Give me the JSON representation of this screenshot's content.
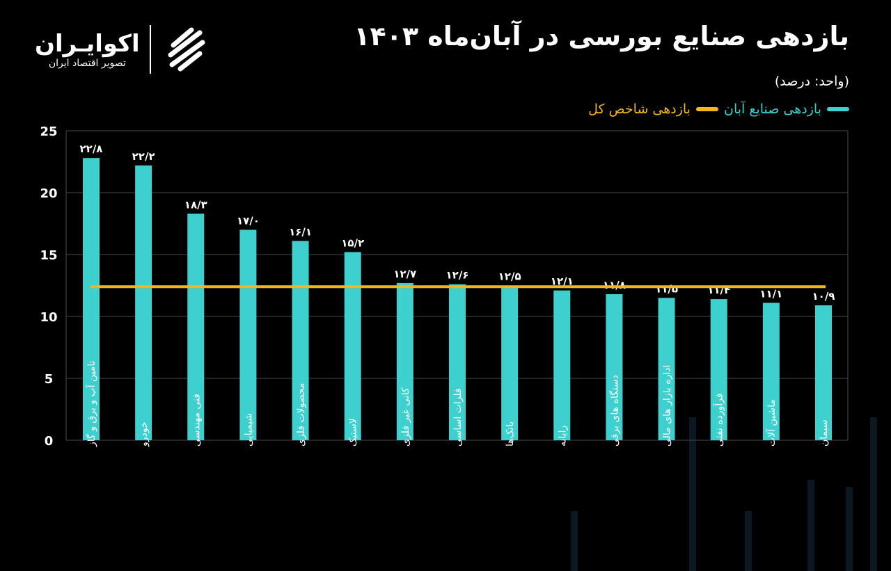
{
  "header": {
    "title": "بازدهی صنایع بورسی در آبان‌ماه ۱۴۰۳",
    "unit": "(واحد: درصد)",
    "logo_name": "اکوایـران",
    "logo_subtitle": "تصویر اقتصاد ایران"
  },
  "colors": {
    "bars": "#3ecfcf",
    "index_line": "#f2b51c",
    "grid": "#4a4a4a",
    "background": "#000000"
  },
  "chart_data": {
    "type": "bar",
    "title": "بازدهی صنایع بورسی در آبان‌ماه ۱۴۰۳",
    "ylabel": "(واحد: درصد)",
    "ylim": [
      0,
      25
    ],
    "yticks": [
      0,
      5,
      10,
      15,
      20,
      25
    ],
    "ytick_labels": [
      "0",
      "5",
      "10",
      "15",
      "20",
      "25"
    ],
    "grid": true,
    "legend_placement": "top-right",
    "categories": [
      "تامین آب و برق و گاز",
      "خودرو",
      "فنی مهندسی",
      "شیمیایی",
      "محصولات فلزی",
      "لاستیک",
      "کانی غیر فلزی",
      "فلزات اساسی",
      "بانک‌ها",
      "رایانه",
      "دستگاه های برقی",
      "اداره بازار های مالی",
      "فرآورده نفتی",
      "ماشین آلات",
      "سیمان"
    ],
    "series": [
      {
        "name": "بازدهی صنایع آبان",
        "values": [
          22.8,
          22.2,
          18.3,
          17.0,
          16.1,
          15.2,
          12.7,
          12.6,
          12.5,
          12.1,
          11.8,
          11.5,
          11.4,
          11.1,
          10.9
        ],
        "data_labels": [
          "۲۲/۸",
          "۲۲/۲",
          "۱۸/۳",
          "۱۷/۰",
          "۱۶/۱",
          "۱۵/۲",
          "۱۲/۷",
          "۱۲/۶",
          "۱۲/۵",
          "۱۲/۱",
          "۱۱/۸",
          "۱۱/۵",
          "۱۱/۴",
          "۱۱/۱",
          "۱۰/۹"
        ]
      },
      {
        "name": "بازدهی شاخص کل",
        "type": "line",
        "value": 12.4
      }
    ]
  }
}
